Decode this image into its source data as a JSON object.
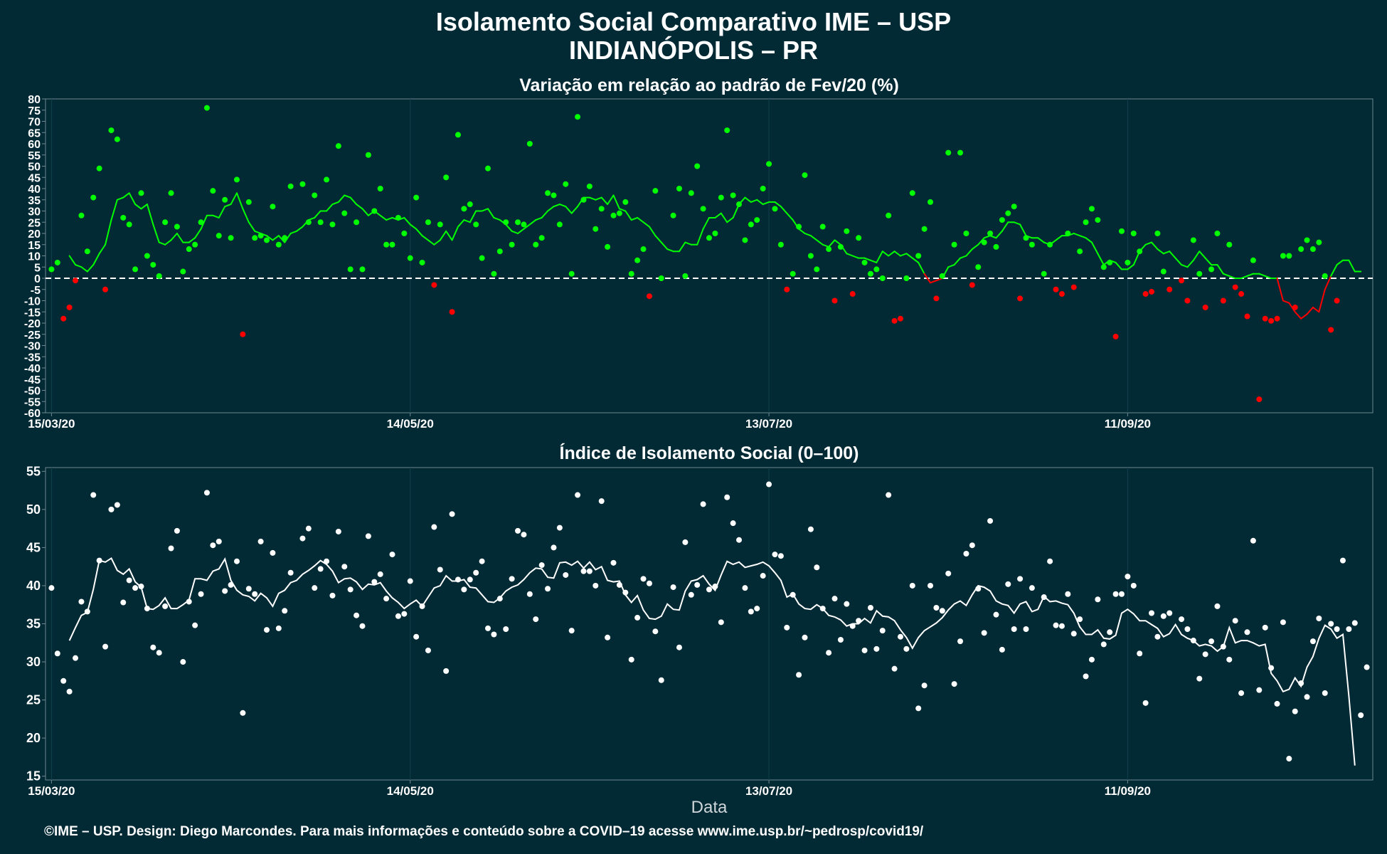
{
  "title": "Isolamento Social Comparativo IME – USP",
  "subtitle": "INDIANÓPOLIS – PR",
  "caption": "©IME – USP. Design: Diego Marcondes. Para mais informações e conteúdo sobre a COVID–19 acesse www.ime.usp.br/~pedrosp/covid19/",
  "colors": {
    "background": "#022a35",
    "positive": "#00ff00",
    "negative": "#ff0000",
    "index": "#ffffff"
  },
  "chart_data": [
    {
      "type": "scatter",
      "title": "Variação em relação ao padrão de Fev/20 (%)",
      "xlabel": "",
      "x_ticks": [
        "15/03/20",
        "14/05/20",
        "13/07/20",
        "11/09/20"
      ],
      "x_tick_days": [
        0,
        60,
        120,
        180
      ],
      "xlim_days": [
        -1,
        221
      ],
      "ylim": [
        -60,
        80
      ],
      "y_ticks": [
        80,
        75,
        70,
        65,
        60,
        55,
        50,
        45,
        40,
        35,
        30,
        25,
        20,
        15,
        10,
        5,
        0,
        -5,
        -10,
        -15,
        -20,
        -25,
        -30,
        -35,
        -40,
        -45,
        -50,
        -55,
        -60
      ],
      "reference_line": 0,
      "series": [
        {
          "kind": "daily points",
          "values": [
            4,
            7,
            -18,
            -13,
            -1,
            28,
            12,
            36,
            49,
            -5,
            66,
            62,
            27,
            24,
            4,
            38,
            10,
            6,
            1,
            25,
            38,
            23,
            3,
            13,
            15,
            25,
            76,
            39,
            19,
            35,
            18,
            44,
            -25,
            34,
            18,
            19,
            17,
            32,
            15,
            18,
            41,
            42,
            25,
            37,
            25,
            44,
            24,
            59,
            29,
            4,
            25,
            4,
            55,
            30,
            40,
            15,
            15,
            27,
            20,
            9,
            36,
            7,
            25,
            -3,
            24,
            45,
            -15,
            64,
            31,
            33,
            24,
            9,
            49,
            2,
            12,
            25,
            15,
            25,
            24,
            60,
            15,
            18,
            38,
            37,
            24,
            42,
            2,
            72,
            35,
            41,
            22,
            31,
            14,
            28,
            29,
            34,
            2,
            8,
            13,
            -8,
            39,
            0,
            28,
            40,
            1,
            38,
            50,
            31,
            18,
            20,
            36,
            66,
            37,
            33,
            17,
            24,
            26,
            40,
            51,
            31,
            15,
            -5,
            2,
            23,
            46,
            10,
            4,
            23,
            13,
            -10,
            14,
            21,
            -7,
            18,
            7,
            2,
            4,
            0,
            28,
            -19,
            -18,
            0,
            38,
            10,
            22,
            34,
            -9,
            1,
            56,
            15,
            56,
            20,
            -3,
            5,
            16,
            20,
            14,
            26,
            29,
            32,
            -9,
            18,
            15,
            2,
            15,
            -5,
            -7,
            20,
            -4,
            12,
            25,
            31,
            26,
            5,
            7,
            -26,
            21,
            7,
            20,
            12,
            -7,
            -6,
            20,
            3,
            -5,
            -1,
            -10,
            17,
            2,
            -13,
            4,
            20,
            -10,
            15,
            -4,
            -7,
            -17,
            8,
            -54,
            -18,
            -19,
            -18,
            10,
            10,
            -13,
            13,
            17,
            13,
            16,
            1,
            -23,
            -10
          ],
          "missing_day_indices": [
            41,
            103,
            165,
            188
          ]
        },
        {
          "kind": "7-day moving average",
          "values": [
            10,
            6,
            5,
            3,
            6,
            11,
            15,
            26,
            35,
            36,
            38,
            33,
            31,
            33,
            24,
            16,
            15,
            17,
            20,
            16,
            16,
            18,
            22,
            28,
            28,
            27,
            32,
            33,
            38,
            31,
            25,
            21,
            20,
            19,
            17,
            19,
            16,
            20,
            21,
            23,
            26,
            27,
            30,
            30,
            33,
            34,
            37,
            36,
            33,
            31,
            28,
            30,
            28,
            26,
            27,
            26,
            27,
            24,
            22,
            19,
            17,
            15,
            17,
            21,
            17,
            23,
            26,
            25,
            30,
            30,
            31,
            27,
            26,
            24,
            21,
            20,
            22,
            24,
            26,
            27,
            30,
            32,
            33,
            32,
            29,
            32,
            36,
            36,
            35,
            36,
            33,
            37,
            31,
            30,
            26,
            27,
            25,
            23,
            19,
            16,
            13,
            12,
            12,
            16,
            15,
            15,
            22,
            27,
            27,
            29,
            25,
            27,
            33,
            36,
            34,
            35,
            33,
            34,
            34,
            32,
            29,
            26,
            22,
            20,
            19,
            17,
            15,
            14,
            17,
            15,
            11,
            10,
            9,
            9,
            8,
            7,
            12,
            10,
            12,
            10,
            11,
            9,
            7,
            2,
            -2,
            -1,
            0,
            5,
            6,
            9,
            10,
            13,
            15,
            18,
            19,
            18,
            21,
            25,
            25,
            24,
            19,
            18,
            18,
            16,
            15,
            17,
            19,
            19,
            20,
            19,
            18,
            16,
            11,
            6,
            8,
            7,
            4,
            4,
            6,
            12,
            15,
            16,
            13,
            11,
            12,
            9,
            6,
            5,
            8,
            12,
            9,
            6,
            6,
            2,
            1,
            0,
            0,
            1,
            2,
            2,
            1,
            0,
            0,
            -10,
            -11,
            -15,
            -18,
            -16,
            -13,
            -15,
            -5,
            1,
            6,
            8,
            8,
            3,
            3
          ],
          "start_day": 3
        }
      ]
    },
    {
      "type": "scatter",
      "title": "Índice de Isolamento Social (0–100)",
      "xlabel": "Data",
      "x_ticks": [
        "15/03/20",
        "14/05/20",
        "13/07/20",
        "11/09/20"
      ],
      "x_tick_days": [
        0,
        60,
        120,
        180
      ],
      "xlim_days": [
        -1,
        221
      ],
      "ylim": [
        14.5,
        55.5
      ],
      "y_ticks": [
        55,
        50,
        45,
        40,
        35,
        30,
        25,
        20,
        15
      ],
      "series": [
        {
          "kind": "daily points",
          "values": [
            39.7,
            31.1,
            27.5,
            26.1,
            30.5,
            37.9,
            36.6,
            51.9,
            43.3,
            32.0,
            50.0,
            50.6,
            37.8,
            40.7,
            39.7,
            39.9,
            37.0,
            31.9,
            31.2,
            37.3,
            44.9,
            47.2,
            30.0,
            37.9,
            34.8,
            38.9,
            52.2,
            45.3,
            45.8,
            39.3,
            40.1,
            43.2,
            23.3,
            39.6,
            38.9,
            45.8,
            34.2,
            44.3,
            34.4,
            36.7,
            41.7,
            46.2,
            47.5,
            39.7,
            42.2,
            43.2,
            38.7,
            47.1,
            42.5,
            39.5,
            36.1,
            34.7,
            46.5,
            40.5,
            41.5,
            38.3,
            44.1,
            36.0,
            36.3,
            40.6,
            33.3,
            37.3,
            31.5,
            47.7,
            42.1,
            28.8,
            49.4,
            40.8,
            39.5,
            40.8,
            41.7,
            43.2,
            34.4,
            33.6,
            38.3,
            34.3,
            40.9,
            47.2,
            46.7,
            38.9,
            35.6,
            42.7,
            39.6,
            45.0,
            47.6,
            41.4,
            34.1,
            51.9,
            41.9,
            41.9,
            40.0,
            51.1,
            33.2,
            43.0,
            40.1,
            39.1,
            30.3,
            35.8,
            40.9,
            40.3,
            34.0,
            27.6,
            39.8,
            31.9,
            45.7,
            38.8,
            40.1,
            50.7,
            39.5,
            39.9,
            35.2,
            51.6,
            48.2,
            46.0,
            39.7,
            36.6,
            37.0,
            41.3,
            53.3,
            44.1,
            43.9,
            34.5,
            38.8,
            28.3,
            33.2,
            47.4,
            42.4,
            37.0,
            31.2,
            38.3,
            32.9,
            37.6,
            34.7,
            35.4,
            31.5,
            37.1,
            31.7,
            34.1,
            51.9,
            29.1,
            33.3,
            31.7,
            40.0,
            23.9,
            26.9,
            40.0,
            37.1,
            36.7,
            41.6,
            27.1,
            32.7,
            44.2,
            45.3,
            39.6,
            33.8,
            48.5,
            36.2,
            31.6,
            40.2,
            34.3,
            40.9,
            34.3,
            39.7,
            38.5,
            43.2,
            34.8,
            34.7,
            38.9,
            33.7,
            35.6,
            28.1,
            30.3,
            38.2,
            32.3,
            33.9,
            38.9,
            38.9,
            41.2,
            40.0,
            31.1,
            24.6,
            36.4,
            33.3,
            36.0,
            36.4,
            35.6,
            34.3,
            32.8,
            27.8,
            31.0,
            32.7,
            37.3,
            32.0,
            30.3,
            35.4,
            25.9,
            33.9,
            45.9,
            26.3,
            34.5,
            29.2,
            24.5,
            35.2,
            17.3,
            23.5,
            27.2,
            25.4,
            32.7,
            35.7,
            25.9,
            35.0,
            34.3,
            43.3,
            34.3,
            35.1,
            23.0,
            29.3
          ],
          "missing_day_indices": [
            41,
            103,
            165,
            188
          ]
        },
        {
          "kind": "7-day moving average",
          "values": [
            32.8,
            34.5,
            36.1,
            36.5,
            39.5,
            43.3,
            43.1,
            43.6,
            42.0,
            41.5,
            42.2,
            40.5,
            39.8,
            37.0,
            36.9,
            37.4,
            38.4,
            37.0,
            37.0,
            37.5,
            38.1,
            40.9,
            40.9,
            40.7,
            41.9,
            42.2,
            43.5,
            40.7,
            39.4,
            38.8,
            38.6,
            38.0,
            39.0,
            38.4,
            37.3,
            39.0,
            39.4,
            40.4,
            40.7,
            41.5,
            42.0,
            42.6,
            43.3,
            42.8,
            41.9,
            40.4,
            40.9,
            41.0,
            40.5,
            39.5,
            40.2,
            40.1,
            40.4,
            39.3,
            38.4,
            37.8,
            37.0,
            37.6,
            38.1,
            37.3,
            38.5,
            39.7,
            40.0,
            41.3,
            40.6,
            40.6,
            40.8,
            39.8,
            39.7,
            38.8,
            37.9,
            37.8,
            38.4,
            39.3,
            39.8,
            40.1,
            40.8,
            41.7,
            42.3,
            42.2,
            41.1,
            41.0,
            43.0,
            43.1,
            42.7,
            43.2,
            42.3,
            43.1,
            42.1,
            42.5,
            40.7,
            40.5,
            40.6,
            38.8,
            37.8,
            38.7,
            36.8,
            35.7,
            35.6,
            36.0,
            37.6,
            36.9,
            36.8,
            39.3,
            40.6,
            40.8,
            41.3,
            40.2,
            39.4,
            41.4,
            43.2,
            42.8,
            43.1,
            42.4,
            42.6,
            42.8,
            43.1,
            42.6,
            41.7,
            40.7,
            38.5,
            38.9,
            37.6,
            37.0,
            36.9,
            37.5,
            37.0,
            36.1,
            35.9,
            35.5,
            34.7,
            35.0,
            35.0,
            35.7,
            35.1,
            36.7,
            36.0,
            35.9,
            35.4,
            34.2,
            33.2,
            31.8,
            33.2,
            34.1,
            34.6,
            35.1,
            35.8,
            36.8,
            37.6,
            38.0,
            37.4,
            38.8,
            40.0,
            39.8,
            39.3,
            38.0,
            37.6,
            37.4,
            36.4,
            37.6,
            37.9,
            36.6,
            36.9,
            38.6,
            37.9,
            38.0,
            37.7,
            37.5,
            36.4,
            34.6,
            33.6,
            33.6,
            34.2,
            33.1,
            33.0,
            33.5,
            36.4,
            36.9,
            36.3,
            35.4,
            35.4,
            34.9,
            34.4,
            33.3,
            33.7,
            34.9,
            33.6,
            33.1,
            32.8,
            32.1,
            32.3,
            32.1,
            31.4,
            32.0,
            34.5,
            32.5,
            32.8,
            32.8,
            32.5,
            32.1,
            32.3,
            28.5,
            27.5,
            26.1,
            26.4,
            27.9,
            26.8,
            29.3,
            30.7,
            33.1,
            34.8,
            34.3,
            33.1,
            33.6,
            25.5,
            16.4
          ],
          "start_day": 3
        }
      ]
    }
  ]
}
